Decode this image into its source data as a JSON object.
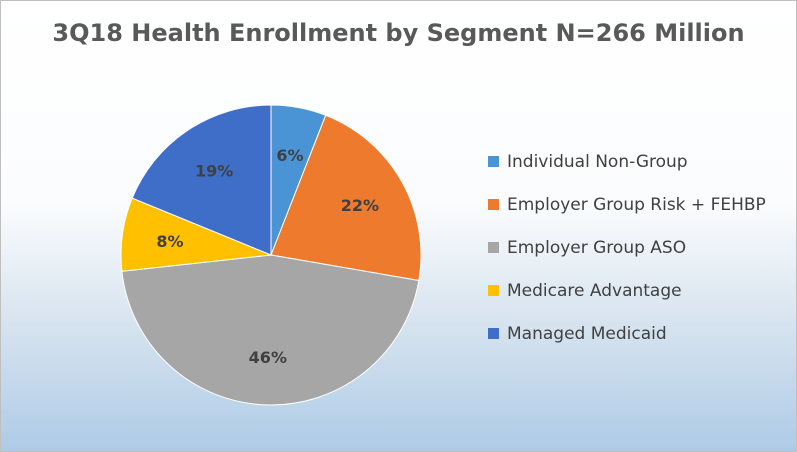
{
  "chart_data": {
    "type": "pie",
    "title": "3Q18 Health Enrollment by Segment N=266 Million",
    "legend_position": "right",
    "slices": [
      {
        "name": "Individual Non-Group",
        "value": 6,
        "label": "6%",
        "color": "#4a94d6"
      },
      {
        "name": "Employer Group Risk + FEHBP",
        "value": 22,
        "label": "22%",
        "color": "#ee7a2d"
      },
      {
        "name": "Employer Group ASO",
        "value": 46,
        "label": "46%",
        "color": "#a6a6a6"
      },
      {
        "name": "Medicare Advantage",
        "value": 8,
        "label": "8%",
        "color": "#ffc000"
      },
      {
        "name": "Managed Medicaid",
        "value": 19,
        "label": "19%",
        "color": "#3f6ec9"
      }
    ]
  }
}
